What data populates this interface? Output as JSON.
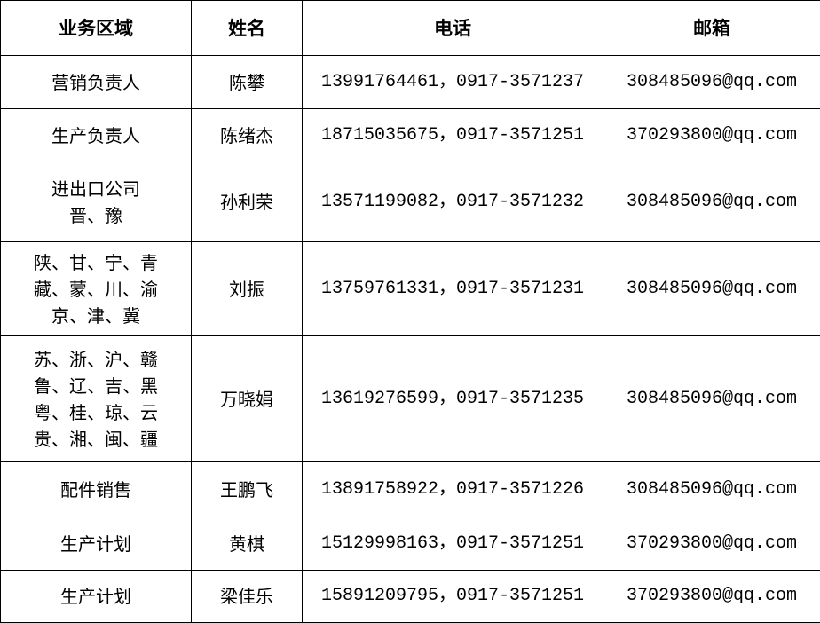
{
  "headers": [
    "业务区域",
    "姓名",
    "电话",
    "邮箱"
  ],
  "rows": [
    {
      "area": "营销负责人",
      "name": "陈攀",
      "phone": "13991764461，0917-3571237",
      "email": "308485096@qq.com"
    },
    {
      "area": "生产负责人",
      "name": "陈绪杰",
      "phone": "18715035675，0917-3571251",
      "email": "370293800@qq.com"
    },
    {
      "area": "进出口公司\n晋、豫",
      "name": "孙利荣",
      "phone": "13571199082，0917-3571232",
      "email": "308485096@qq.com"
    },
    {
      "area": "陕、甘、宁、青\n藏、蒙、川、渝\n京、津、冀",
      "name": "刘振",
      "phone": "13759761331，0917-3571231",
      "email": "308485096@qq.com"
    },
    {
      "area": "苏、浙、沪、赣\n鲁、辽、吉、黑\n粤、桂、琼、云\n贵、湘、闽、疆",
      "name": "万晓娟",
      "phone": "13619276599，0917-3571235",
      "email": "308485096@qq.com"
    },
    {
      "area": "配件销售",
      "name": "王鹏飞",
      "phone": "13891758922，0917-3571226",
      "email": "308485096@qq.com"
    },
    {
      "area": "生产计划",
      "name": "黄棋",
      "phone": "15129998163，0917-3571251",
      "email": "370293800@qq.com"
    },
    {
      "area": "生产计划",
      "name": "梁佳乐",
      "phone": "15891209795，0917-3571251",
      "email": "370293800@qq.com"
    }
  ]
}
